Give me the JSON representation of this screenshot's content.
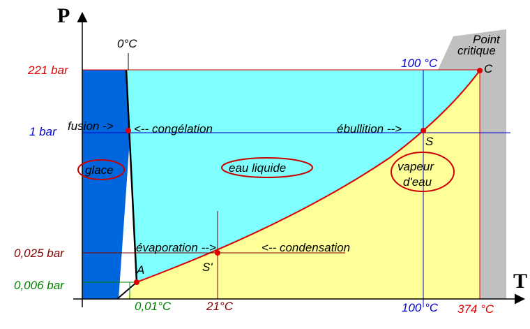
{
  "axes": {
    "y_label": "P",
    "x_label": "T"
  },
  "pressures": [
    "221 bar",
    "1 bar",
    "0,025 bar",
    "0,006 bar"
  ],
  "temperatures": {
    "top_zero": "0°C",
    "top_100": "100 °C",
    "bottom": [
      "0,01°C",
      "21°C",
      "100 °C",
      "374 °C"
    ]
  },
  "critical_point": {
    "title": [
      "Point",
      "critique"
    ],
    "label": "C"
  },
  "points": {
    "triple": "A",
    "boiling": "S",
    "evaporation": "S'"
  },
  "arrows": {
    "fusion": "fusion ->",
    "freezing": "<-- congélation",
    "boiling": "ébullition -->",
    "evaporation": "évaporation -->",
    "condensation": "<-- condensation"
  },
  "regions": {
    "solid": "glace",
    "liquid": "eau liquide",
    "vapor": [
      "vapeur",
      "d'eau"
    ]
  }
}
